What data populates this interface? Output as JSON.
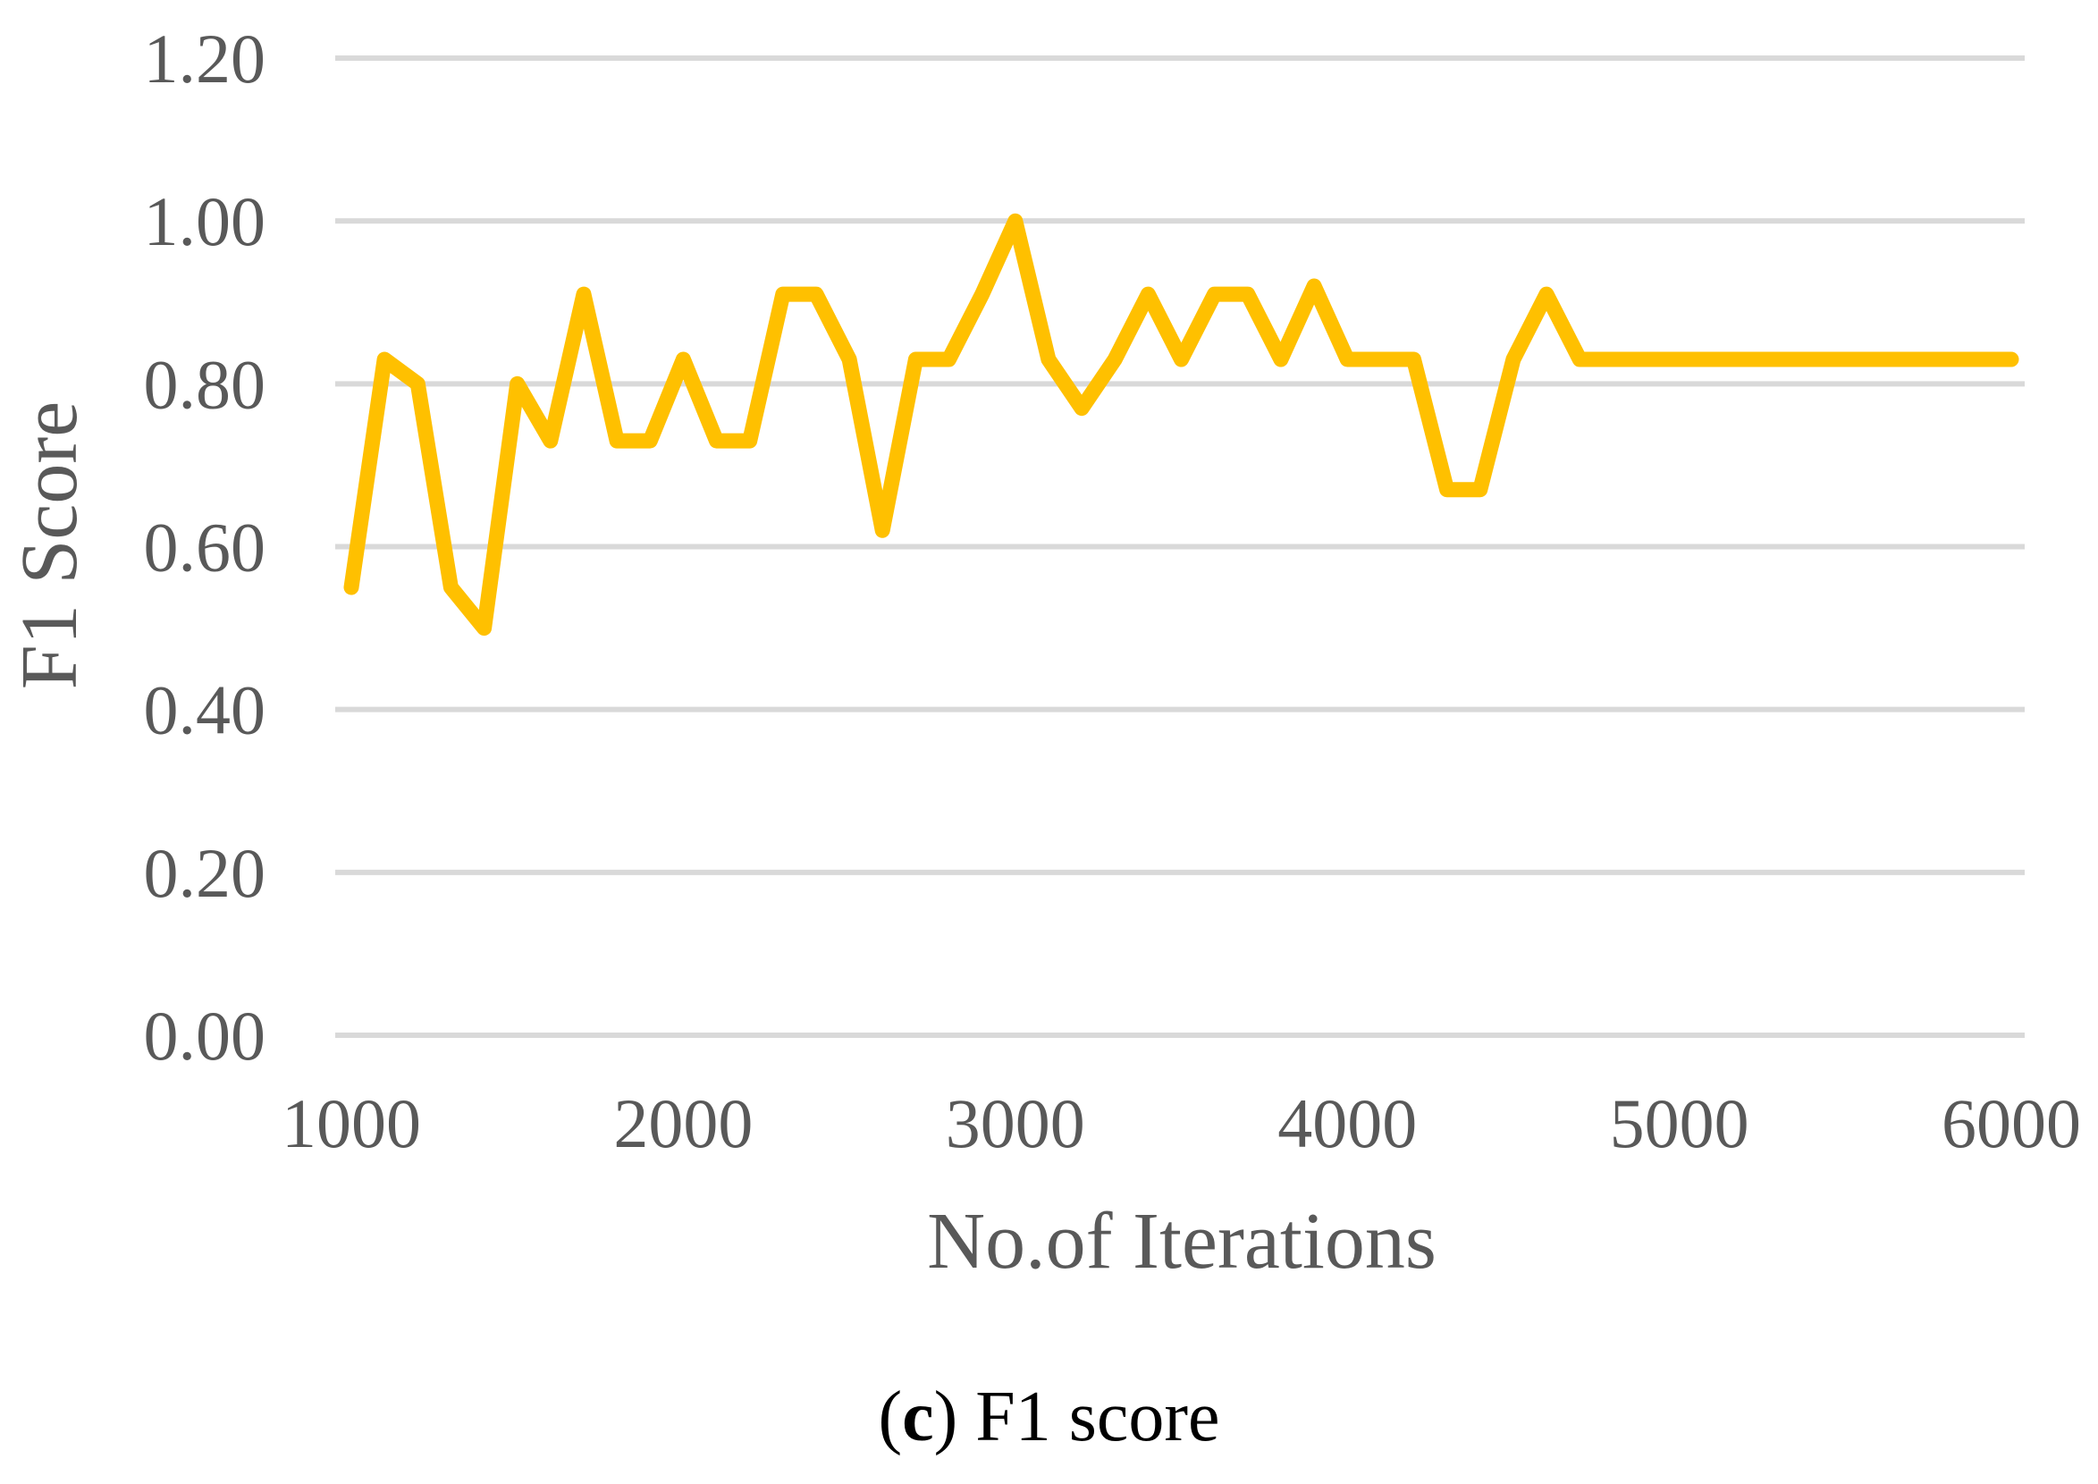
{
  "caption": {
    "open_paren": "(",
    "letter": "c",
    "close_paren": ")",
    "text": " F1 score"
  },
  "chart_data": {
    "type": "line",
    "xlabel": "No.of Iterations",
    "ylabel": "F1 Score",
    "xlim": [
      1000,
      6000
    ],
    "ylim": [
      0,
      1.2
    ],
    "x_ticks": [
      1000,
      2000,
      3000,
      4000,
      5000,
      6000
    ],
    "x_tick_labels": [
      "1000",
      "2000",
      "3000",
      "4000",
      "5000",
      "6000"
    ],
    "y_ticks": [
      0,
      0.2,
      0.4,
      0.6,
      0.8,
      1.0,
      1.2
    ],
    "y_tick_labels": [
      "0.00",
      "0.20",
      "0.40",
      "0.60",
      "0.80",
      "1.00",
      "1.20"
    ],
    "grid": "horizontal",
    "series": [
      {
        "color": "#FFC000",
        "x": [
          1000,
          1100,
          1200,
          1300,
          1400,
          1500,
          1600,
          1700,
          1800,
          1900,
          2000,
          2100,
          2200,
          2300,
          2400,
          2500,
          2600,
          2700,
          2800,
          2900,
          3000,
          3100,
          3200,
          3300,
          3400,
          3500,
          3600,
          3700,
          3800,
          3900,
          4000,
          4100,
          4200,
          4300,
          4400,
          4500,
          4600,
          4700,
          4800,
          4900,
          5000,
          5100,
          5200,
          5300,
          5400,
          5500,
          5600,
          5700,
          5800,
          5900,
          6000
        ],
        "y": [
          0.55,
          0.83,
          0.8,
          0.55,
          0.5,
          0.8,
          0.73,
          0.91,
          0.73,
          0.73,
          0.83,
          0.73,
          0.73,
          0.91,
          0.91,
          0.83,
          0.62,
          0.83,
          0.83,
          0.91,
          1.0,
          0.83,
          0.77,
          0.83,
          0.91,
          0.83,
          0.91,
          0.91,
          0.83,
          0.92,
          0.83,
          0.83,
          0.83,
          0.67,
          0.67,
          0.83,
          0.91,
          0.83,
          0.83,
          0.83,
          0.83,
          0.83,
          0.83,
          0.83,
          0.83,
          0.83,
          0.83,
          0.83,
          0.83,
          0.83,
          0.83
        ]
      }
    ]
  }
}
